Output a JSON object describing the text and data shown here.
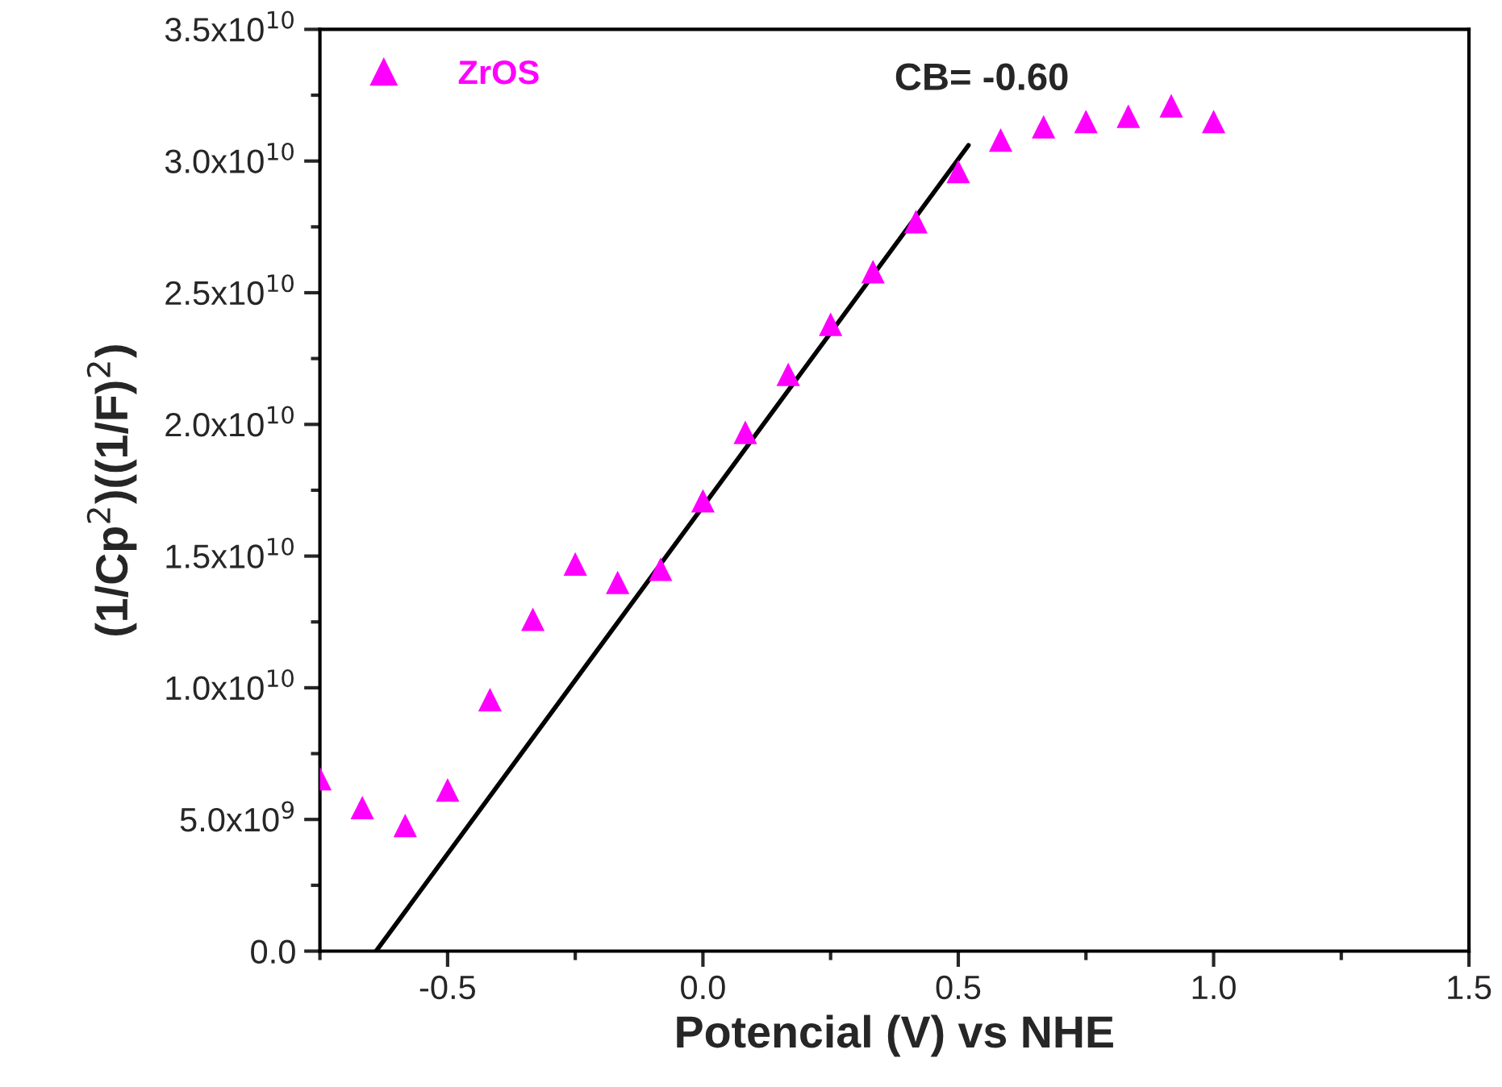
{
  "chart_data": {
    "type": "scatter",
    "xlabel": "Potencial (V) vs NHE",
    "ylabel": "(1/Cp$^{2}$)((1/F)$^{2}$)",
    "annotations": [
      "CB= -0.60"
    ],
    "series": [
      {
        "name": "ZrOS",
        "color": "#ff00ff",
        "marker": "triangle",
        "x": [
          -0.75,
          -0.667,
          -0.583,
          -0.5,
          -0.417,
          -0.333,
          -0.25,
          -0.167,
          -0.083,
          0.0,
          0.083,
          0.167,
          0.25,
          0.333,
          0.417,
          0.5,
          0.583,
          0.667,
          0.75,
          0.833,
          0.917,
          1.0
        ],
        "values": [
          6550000000.0,
          5450000000.0,
          4770000000.0,
          6120000000.0,
          9550000000.0,
          12600000000.0,
          14700000000.0,
          14000000000.0,
          14500000000.0,
          17100000000.0,
          19700000000.0,
          21900000000.0,
          23800000000.0,
          25800000000.0,
          27700000000.0,
          29600000000.0,
          30800000000.0,
          31300000000.0,
          31500000000.0,
          31700000000.0,
          32100000000.0,
          31500000000.0
        ]
      },
      {
        "type": "line",
        "color": "#000000",
        "line_style": "solid",
        "x": [
          -0.64,
          0.52
        ],
        "values": [
          0,
          30600000000.0
        ]
      }
    ],
    "xlim": [
      -0.75,
      1.5
    ],
    "xticks": [
      -0.5,
      {
        "value": 0,
        "label": "0.0"
      },
      0.5,
      {
        "value": 1,
        "label": "1.0"
      },
      1.5
    ],
    "ylim": [
      0,
      35000000000.0
    ],
    "yticks": [
      {
        "value": 0,
        "label": "0.0"
      },
      {
        "value": 5000000000.0,
        "label": "5.0x10$^{9}$"
      },
      {
        "value": 10000000000.0,
        "label": "1.0x10$^{10}$"
      },
      {
        "value": 15000000000.0,
        "label": "1.5x10$^{10}$"
      },
      {
        "value": 20000000000.0,
        "label": "2.0x10$^{10}$"
      },
      {
        "value": 25000000000.0,
        "label": "2.5x10$^{10}$"
      },
      {
        "value": 30000000000.0,
        "label": "3.0x10$^{10}$"
      },
      {
        "value": 35000000000.0,
        "label": "3.5x10$^{10}$"
      }
    ],
    "grid": false,
    "legend": "top left"
  }
}
